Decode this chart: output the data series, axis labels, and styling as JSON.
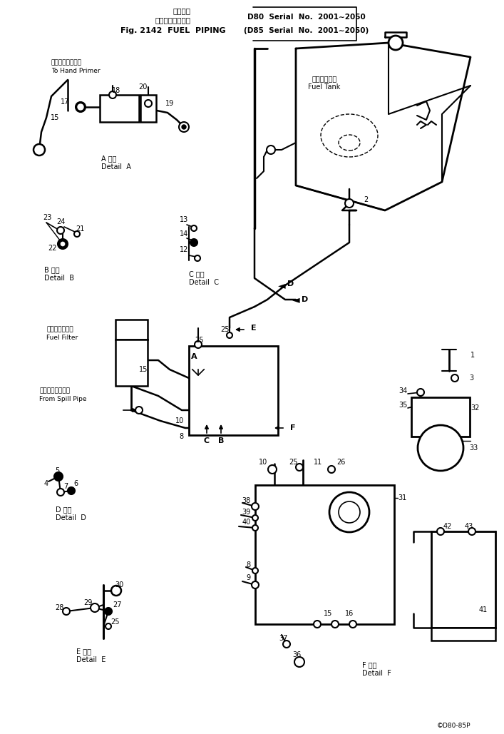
{
  "bg_color": "#ffffff",
  "figsize": [
    7.07,
    10.29
  ],
  "dpi": 100,
  "title_jp": "フェルバイピング",
  "title_en": "Fig. 2142  FUEL  PIPING",
  "serial_jp": "適用号数",
  "serial1": "D80  Serial  No.  2001∼2050",
  "serial2": "(D85  Serial  No.  2001∼2050)",
  "copyright": "©D80-85P"
}
